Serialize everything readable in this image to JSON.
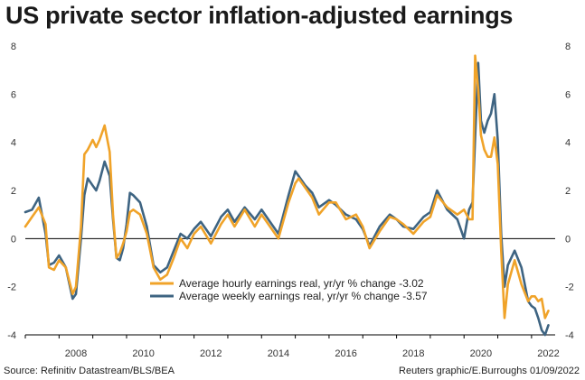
{
  "title": "US private sector inflation-adjusted earnings",
  "source": "Source: Refinitiv Datastream/BLS/BEA",
  "credit": "Reuters graphic/E.Burroughs 01/09/2022",
  "chart_data": {
    "type": "line",
    "title": "US private sector inflation-adjusted earnings",
    "xlabel": "",
    "ylabel": "",
    "xlim": [
      2007.0,
      2022.7
    ],
    "ylim": [
      -4,
      8
    ],
    "x_ticks": [
      2008,
      2010,
      2012,
      2014,
      2016,
      2018,
      2020,
      2022
    ],
    "y_ticks": [
      -4,
      -2,
      0,
      2,
      4,
      6,
      8
    ],
    "grid": false,
    "zero_line": true,
    "legend_position": "bottom-center",
    "series": [
      {
        "name": "Average hourly earnings real, yr/yr % change -3.02",
        "color": "#f0a329",
        "x": [
          2007.0,
          2007.2,
          2007.4,
          2007.6,
          2007.7,
          2007.85,
          2008.0,
          2008.2,
          2008.4,
          2008.5,
          2008.65,
          2008.75,
          2008.85,
          2009.0,
          2009.1,
          2009.2,
          2009.35,
          2009.5,
          2009.6,
          2009.7,
          2009.8,
          2009.9,
          2010.0,
          2010.1,
          2010.2,
          2010.4,
          2010.6,
          2010.8,
          2011.0,
          2011.2,
          2011.4,
          2011.6,
          2011.8,
          2012.0,
          2012.2,
          2012.5,
          2012.8,
          2013.0,
          2013.2,
          2013.5,
          2013.8,
          2014.0,
          2014.2,
          2014.5,
          2014.8,
          2015.0,
          2015.1,
          2015.3,
          2015.5,
          2015.7,
          2016.0,
          2016.2,
          2016.5,
          2016.8,
          2017.0,
          2017.2,
          2017.5,
          2017.8,
          2018.0,
          2018.2,
          2018.5,
          2018.8,
          2019.0,
          2019.2,
          2019.5,
          2019.8,
          2020.0,
          2020.15,
          2020.25,
          2020.33,
          2020.42,
          2020.5,
          2020.6,
          2020.7,
          2020.8,
          2020.9,
          2021.0,
          2021.1,
          2021.2,
          2021.3,
          2021.5,
          2021.7,
          2021.9,
          2022.0,
          2022.1,
          2022.2,
          2022.3,
          2022.4,
          2022.5
        ],
        "y": [
          0.5,
          0.9,
          1.3,
          0.6,
          -1.2,
          -1.3,
          -0.9,
          -1.2,
          -2.3,
          -2.0,
          0.5,
          3.5,
          3.7,
          4.1,
          3.8,
          4.1,
          4.7,
          3.6,
          1.0,
          -0.8,
          -0.6,
          -0.2,
          0.3,
          1.1,
          1.2,
          1.0,
          0.2,
          -1.2,
          -1.7,
          -1.5,
          -0.8,
          0.0,
          -0.4,
          0.2,
          0.5,
          -0.2,
          0.6,
          1.0,
          0.5,
          1.2,
          0.5,
          1.0,
          0.6,
          0.0,
          1.5,
          2.3,
          2.5,
          2.1,
          1.7,
          1.0,
          1.5,
          1.5,
          0.8,
          1.0,
          0.5,
          -0.4,
          0.3,
          0.9,
          0.8,
          0.6,
          0.2,
          0.7,
          0.9,
          1.8,
          1.3,
          1.0,
          1.2,
          0.8,
          0.8,
          7.6,
          6.2,
          4.3,
          3.7,
          3.4,
          3.4,
          4.2,
          3.1,
          -0.5,
          -3.3,
          -1.9,
          -0.9,
          -1.9,
          -2.6,
          -2.4,
          -2.4,
          -2.6,
          -2.5,
          -3.3,
          -3.0
        ]
      },
      {
        "name": "Average weekly earnings real, yr/yr % change -3.57",
        "color": "#3e6482",
        "x": [
          2007.0,
          2007.2,
          2007.4,
          2007.6,
          2007.7,
          2007.85,
          2008.0,
          2008.2,
          2008.4,
          2008.5,
          2008.65,
          2008.75,
          2008.85,
          2009.0,
          2009.1,
          2009.2,
          2009.35,
          2009.5,
          2009.6,
          2009.7,
          2009.8,
          2009.9,
          2010.0,
          2010.1,
          2010.2,
          2010.4,
          2010.6,
          2010.8,
          2011.0,
          2011.2,
          2011.4,
          2011.6,
          2011.8,
          2012.0,
          2012.2,
          2012.5,
          2012.8,
          2013.0,
          2013.2,
          2013.5,
          2013.8,
          2014.0,
          2014.2,
          2014.5,
          2014.8,
          2015.0,
          2015.1,
          2015.3,
          2015.5,
          2015.7,
          2016.0,
          2016.2,
          2016.5,
          2016.8,
          2017.0,
          2017.2,
          2017.5,
          2017.8,
          2018.0,
          2018.2,
          2018.5,
          2018.8,
          2019.0,
          2019.2,
          2019.5,
          2019.8,
          2020.0,
          2020.15,
          2020.25,
          2020.33,
          2020.42,
          2020.5,
          2020.6,
          2020.7,
          2020.8,
          2020.9,
          2021.0,
          2021.1,
          2021.2,
          2021.3,
          2021.5,
          2021.7,
          2021.9,
          2022.0,
          2022.1,
          2022.2,
          2022.3,
          2022.4,
          2022.5
        ],
        "y": [
          1.1,
          1.2,
          1.7,
          0.2,
          -1.1,
          -1.0,
          -0.7,
          -1.2,
          -2.5,
          -2.3,
          0.0,
          1.8,
          2.5,
          2.2,
          2.0,
          2.4,
          3.2,
          2.6,
          0.8,
          -0.8,
          -0.9,
          -0.4,
          0.6,
          1.9,
          1.8,
          1.5,
          0.5,
          -1.1,
          -1.4,
          -1.2,
          -0.5,
          0.2,
          0.0,
          0.4,
          0.7,
          0.1,
          0.9,
          1.2,
          0.7,
          1.3,
          0.8,
          1.2,
          0.8,
          0.2,
          1.8,
          2.8,
          2.6,
          2.2,
          1.9,
          1.3,
          1.6,
          1.4,
          1.0,
          0.8,
          0.4,
          -0.3,
          0.5,
          1.0,
          0.8,
          0.5,
          0.4,
          0.9,
          1.1,
          2.0,
          1.2,
          0.8,
          0.0,
          1.2,
          1.5,
          4.2,
          7.3,
          4.9,
          4.4,
          4.9,
          5.2,
          6.0,
          4.1,
          0.2,
          -2.0,
          -1.1,
          -0.5,
          -1.2,
          -2.6,
          -2.8,
          -2.9,
          -3.3,
          -3.8,
          -4.0,
          -3.6
        ]
      }
    ]
  }
}
